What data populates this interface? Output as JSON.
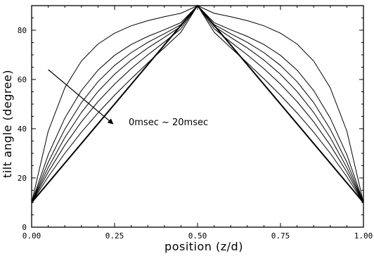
{
  "chart_data": {
    "type": "line",
    "title": "",
    "xlabel": "position (z/d)",
    "ylabel": "tilt angle (degree)",
    "xlim": [
      0,
      1
    ],
    "ylim": [
      0,
      90
    ],
    "xticks": [
      0.0,
      0.25,
      0.5,
      0.75,
      1.0
    ],
    "xtick_labels": [
      "0.00",
      "0.25",
      "0.50",
      "0.75",
      "1.00"
    ],
    "yticks": [
      0,
      20,
      40,
      60,
      80
    ],
    "ytick_labels": [
      "0",
      "20",
      "40",
      "60",
      "80"
    ],
    "grid": false,
    "legend": "none",
    "annotation": {
      "text": "0msec ~ 20msec",
      "arrow_from": [
        0.05,
        64
      ],
      "arrow_to": [
        0.245,
        42
      ]
    },
    "x": [
      0,
      0.05,
      0.1,
      0.15,
      0.2,
      0.25,
      0.3,
      0.35,
      0.4,
      0.45,
      0.5,
      0.55,
      0.6,
      0.65,
      0.7,
      0.75,
      0.8,
      0.85,
      0.9,
      0.95,
      1.0
    ],
    "series": [
      {
        "values": [
          10,
          18,
          26,
          34,
          42,
          50,
          58,
          66,
          74,
          82,
          90,
          82,
          74,
          66,
          58,
          50,
          42,
          34,
          26,
          18,
          10
        ]
      },
      {
        "values": [
          10,
          20.5,
          30.0,
          38.6,
          46.4,
          53.6,
          60.3,
          66.7,
          72.9,
          79.2,
          90,
          79.2,
          72.9,
          66.7,
          60.3,
          53.6,
          46.4,
          38.6,
          30.0,
          20.5,
          10
        ]
      },
      {
        "values": [
          10,
          22.4,
          33.3,
          42.8,
          51.0,
          58.1,
          64.4,
          70.0,
          75.2,
          80.6,
          90,
          80.6,
          75.2,
          70.0,
          64.4,
          58.1,
          51.0,
          42.8,
          33.3,
          22.4,
          10
        ]
      },
      {
        "values": [
          10,
          24.2,
          36.4,
          46.6,
          55.1,
          62.1,
          67.9,
          72.8,
          77.1,
          81.6,
          90,
          81.6,
          77.1,
          72.8,
          67.9,
          62.1,
          55.1,
          46.6,
          36.4,
          24.2,
          10
        ]
      },
      {
        "values": [
          10,
          26.4,
          39.8,
          50.6,
          59.1,
          65.7,
          70.9,
          75.1,
          78.6,
          82.3,
          90,
          82.3,
          78.6,
          75.1,
          70.9,
          65.7,
          59.1,
          50.6,
          39.8,
          26.4,
          10
        ]
      },
      {
        "values": [
          10,
          29.4,
          44.3,
          55.5,
          63.8,
          69.8,
          74.2,
          77.5,
          80.2,
          83.1,
          90,
          83.1,
          80.2,
          77.5,
          74.2,
          69.8,
          63.8,
          55.5,
          44.3,
          29.4,
          10
        ]
      },
      {
        "values": [
          10,
          39.0,
          56.6,
          67.5,
          74.4,
          78.8,
          81.8,
          83.9,
          85.5,
          86.9,
          90,
          86.9,
          85.5,
          83.9,
          81.8,
          78.8,
          74.4,
          67.5,
          56.6,
          39.0,
          10
        ]
      }
    ]
  }
}
